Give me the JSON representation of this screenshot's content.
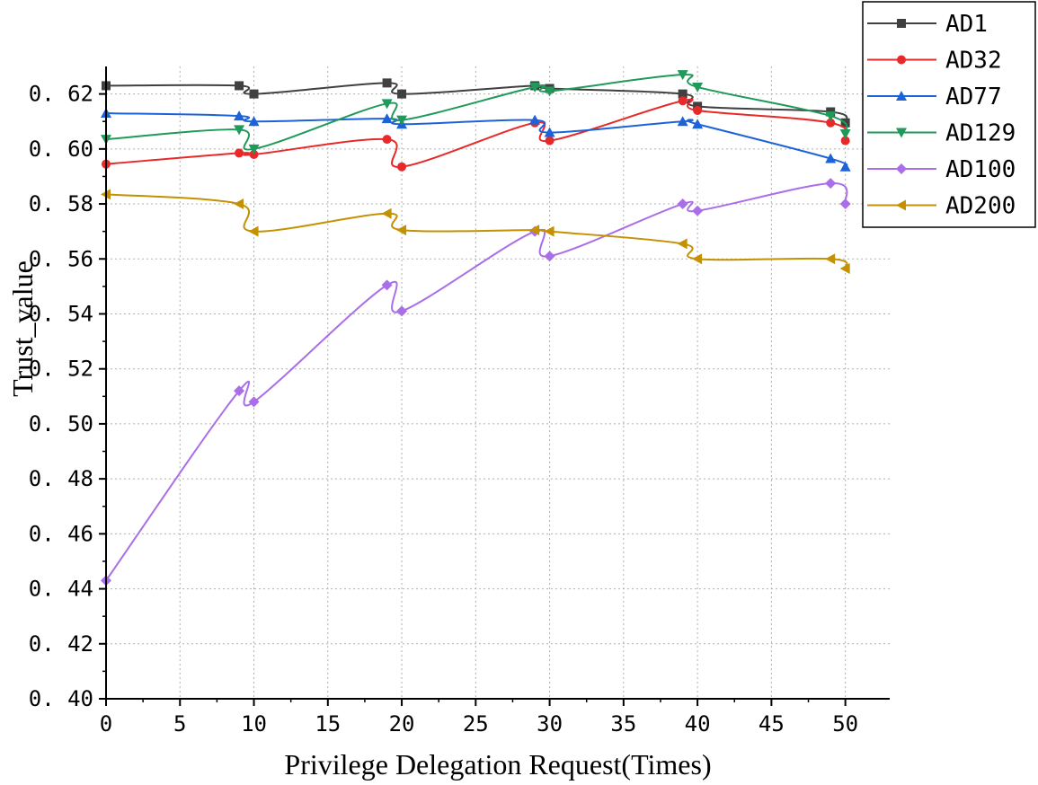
{
  "chart_data": {
    "type": "line",
    "title": "",
    "xlabel": "Privilege Delegation Request(Times)",
    "ylabel": "Trust_value",
    "xlim": [
      0,
      53
    ],
    "ylim": [
      0.4,
      0.63
    ],
    "xticks": [
      0,
      5,
      10,
      15,
      20,
      25,
      30,
      35,
      40,
      45,
      50
    ],
    "xtick_labels": [
      "0",
      "5",
      "10",
      "15",
      "20",
      "25",
      "30",
      "35",
      "40",
      "45",
      "50"
    ],
    "yticks": [
      0.4,
      0.42,
      0.44,
      0.46,
      0.48,
      0.5,
      0.52,
      0.54,
      0.56,
      0.58,
      0.6,
      0.62
    ],
    "ytick_labels": [
      "0. 40",
      "0. 42",
      "0. 44",
      "0. 46",
      "0. 48",
      "0. 50",
      "0. 52",
      "0. 54",
      "0. 56",
      "0. 58",
      "0. 60",
      "0. 62"
    ],
    "grid": true,
    "legend_position": "top-right",
    "x": [
      0,
      9,
      10,
      19,
      20,
      29,
      30,
      39,
      40,
      49,
      50
    ],
    "series": [
      {
        "name": "AD1",
        "color": "#404040",
        "marker": "square",
        "values": [
          0.623,
          0.623,
          0.62,
          0.624,
          0.62,
          0.623,
          0.622,
          0.62,
          0.6155,
          0.6135,
          0.6095
        ]
      },
      {
        "name": "AD32",
        "color": "#e8292a",
        "marker": "circle",
        "values": [
          0.5945,
          0.5985,
          0.598,
          0.6035,
          0.5935,
          0.6095,
          0.603,
          0.6175,
          0.614,
          0.6095,
          0.603
        ]
      },
      {
        "name": "AD77",
        "color": "#1d63d8",
        "marker": "triangle-up",
        "values": [
          0.613,
          0.612,
          0.61,
          0.611,
          0.609,
          0.6105,
          0.606,
          0.61,
          0.609,
          0.5965,
          0.5935
        ]
      },
      {
        "name": "AD129",
        "color": "#1f9a5a",
        "marker": "triangle-down",
        "values": [
          0.6035,
          0.607,
          0.6,
          0.6165,
          0.6105,
          0.6225,
          0.621,
          0.627,
          0.6225,
          0.612,
          0.6055
        ]
      },
      {
        "name": "AD100",
        "color": "#a96ee8",
        "marker": "diamond",
        "values": [
          0.443,
          0.512,
          0.508,
          0.5505,
          0.541,
          0.57,
          0.561,
          0.58,
          0.5775,
          0.5875,
          0.58
        ]
      },
      {
        "name": "AD200",
        "color": "#c49102",
        "marker": "triangle-left",
        "values": [
          0.5835,
          0.58,
          0.57,
          0.5765,
          0.5705,
          0.5705,
          0.57,
          0.5655,
          0.56,
          0.56,
          0.5565
        ]
      }
    ]
  }
}
